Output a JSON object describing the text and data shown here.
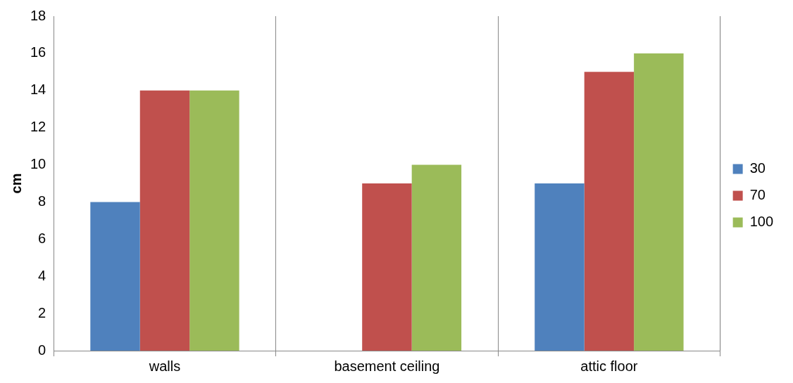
{
  "chart_data": {
    "type": "bar",
    "ylabel": "cm",
    "categories": [
      "walls",
      "basement ceiling",
      "attic floor"
    ],
    "series": [
      {
        "name": "30",
        "color": "#4f81bd",
        "values": [
          8,
          null,
          9
        ]
      },
      {
        "name": "70",
        "color": "#c0504d",
        "values": [
          14,
          9,
          15
        ]
      },
      {
        "name": "100",
        "color": "#9bbb59",
        "values": [
          14,
          10,
          16
        ]
      }
    ],
    "ylim": [
      0,
      18
    ],
    "yticks": [
      0,
      2,
      4,
      6,
      8,
      10,
      12,
      14,
      16,
      18
    ],
    "grid": "x",
    "legend": "right"
  }
}
